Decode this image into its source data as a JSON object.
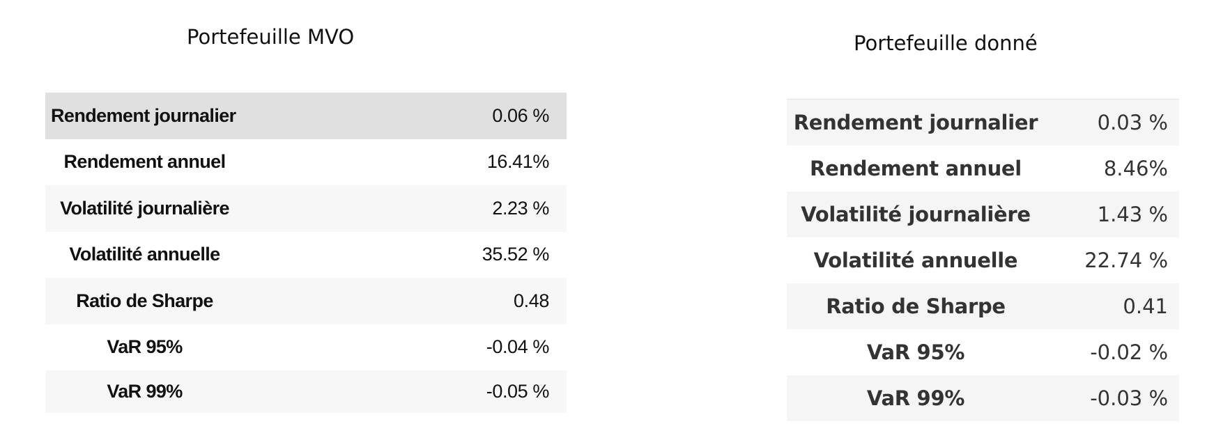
{
  "left_panel": {
    "title": "Portefeuille MVO",
    "rows": [
      {
        "label": "Rendement journalier",
        "value": "0.06 %"
      },
      {
        "label": "Rendement annuel",
        "value": "16.41%"
      },
      {
        "label": "Volatilité journalière",
        "value": "2.23 %"
      },
      {
        "label": "Volatilité annuelle",
        "value": "35.52 %"
      },
      {
        "label": "Ratio de Sharpe",
        "value": "0.48"
      },
      {
        "label": "VaR 95%",
        "value": "-0.04 %"
      },
      {
        "label": "VaR 99%",
        "value": "-0.05 %"
      }
    ]
  },
  "right_panel": {
    "title": "Portefeuille donné",
    "rows": [
      {
        "label": "Rendement journalier",
        "value": "0.03 %"
      },
      {
        "label": "Rendement annuel",
        "value": "8.46%"
      },
      {
        "label": "Volatilité journalière",
        "value": "1.43 %"
      },
      {
        "label": "Volatilité annuelle",
        "value": "22.74 %"
      },
      {
        "label": "Ratio de Sharpe",
        "value": "0.41"
      },
      {
        "label": "VaR 95%",
        "value": "-0.02 %"
      },
      {
        "label": "VaR 99%",
        "value": "-0.03 %"
      }
    ]
  },
  "colors": {
    "highlight_row": "#e0e0e0",
    "stripe_row": "#f7f7f7",
    "text": "#111111"
  }
}
